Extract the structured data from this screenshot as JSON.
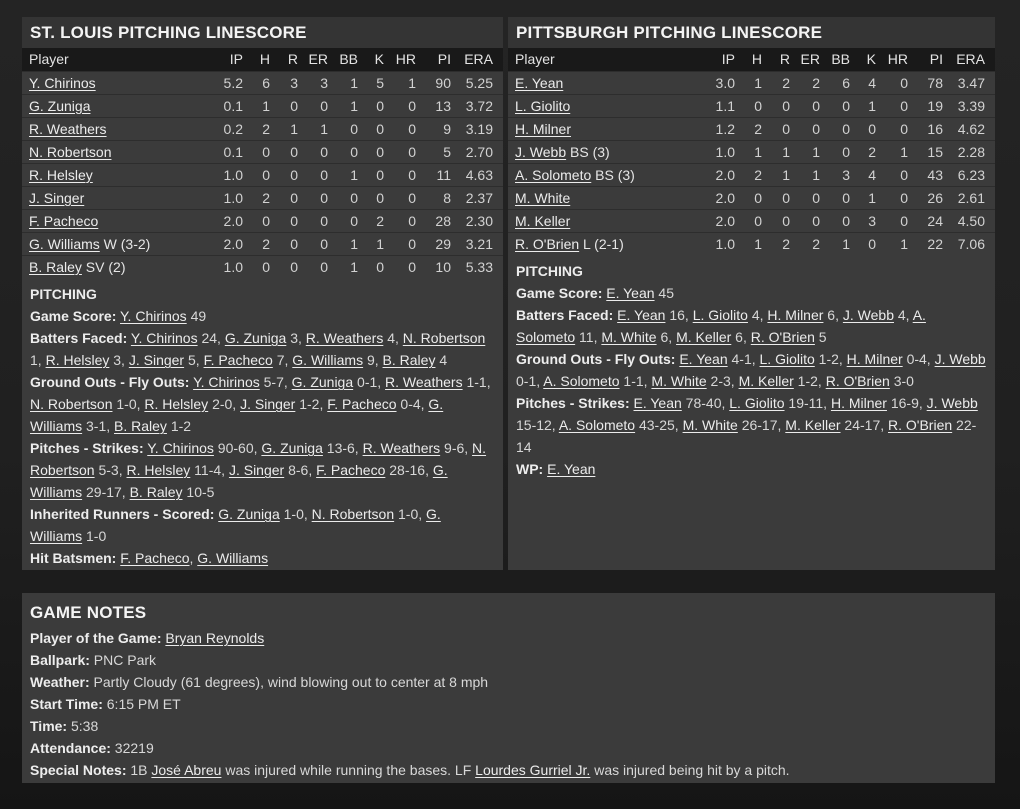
{
  "colors": {
    "page_bg": "#212121",
    "panel_bg": "#3b3b3b",
    "title_bar_bg": "#343434",
    "table_header_bg": "#191919",
    "text_primary": "#ececec",
    "text_secondary": "#d2d2d2"
  },
  "stl_panel": {
    "title": "ST. LOUIS PITCHING LINESCORE",
    "table": {
      "columns": [
        "Player",
        "IP",
        "H",
        "R",
        "ER",
        "BB",
        "K",
        "HR",
        "PI",
        "ERA"
      ],
      "rows": [
        {
          "player": "Y. Chirinos",
          "decision": "",
          "stats": [
            "5.2",
            "6",
            "3",
            "3",
            "1",
            "5",
            "1",
            "90",
            "5.25"
          ]
        },
        {
          "player": "G. Zuniga",
          "decision": "",
          "stats": [
            "0.1",
            "1",
            "0",
            "0",
            "1",
            "0",
            "0",
            "13",
            "3.72"
          ]
        },
        {
          "player": "R. Weathers",
          "decision": "",
          "stats": [
            "0.2",
            "2",
            "1",
            "1",
            "0",
            "0",
            "0",
            "9",
            "3.19"
          ]
        },
        {
          "player": "N. Robertson",
          "decision": "",
          "stats": [
            "0.1",
            "0",
            "0",
            "0",
            "0",
            "0",
            "0",
            "5",
            "2.70"
          ]
        },
        {
          "player": "R. Helsley",
          "decision": "",
          "stats": [
            "1.0",
            "0",
            "0",
            "0",
            "1",
            "0",
            "0",
            "11",
            "4.63"
          ]
        },
        {
          "player": "J. Singer",
          "decision": "",
          "stats": [
            "1.0",
            "2",
            "0",
            "0",
            "0",
            "0",
            "0",
            "8",
            "2.37"
          ]
        },
        {
          "player": "F. Pacheco",
          "decision": "",
          "stats": [
            "2.0",
            "0",
            "0",
            "0",
            "0",
            "2",
            "0",
            "28",
            "2.30"
          ]
        },
        {
          "player": "G. Williams",
          "decision": "W (3-2)",
          "stats": [
            "2.0",
            "2",
            "0",
            "0",
            "1",
            "1",
            "0",
            "29",
            "3.21"
          ]
        },
        {
          "player": "B. Raley",
          "decision": "SV (2)",
          "stats": [
            "1.0",
            "0",
            "0",
            "0",
            "1",
            "0",
            "0",
            "10",
            "5.33"
          ]
        }
      ]
    },
    "notes_heading": "PITCHING",
    "notes_lines": [
      [
        [
          "b",
          "Game Score:"
        ],
        [
          "t",
          " "
        ],
        [
          "l",
          "Y. Chirinos"
        ],
        [
          "t",
          " 49"
        ]
      ],
      [
        [
          "b",
          "Batters Faced:"
        ],
        [
          "t",
          " "
        ],
        [
          "l",
          "Y. Chirinos"
        ],
        [
          "t",
          " 24, "
        ],
        [
          "l",
          "G. Zuniga"
        ],
        [
          "t",
          " 3, "
        ],
        [
          "l",
          "R. Weathers"
        ],
        [
          "t",
          " 4, "
        ],
        [
          "l",
          "N. Robertson"
        ],
        [
          "t",
          " 1, "
        ],
        [
          "l",
          "R. Helsley"
        ],
        [
          "t",
          " 3, "
        ],
        [
          "l",
          "J. Singer"
        ],
        [
          "t",
          " 5, "
        ],
        [
          "l",
          "F. Pacheco"
        ],
        [
          "t",
          " 7, "
        ],
        [
          "l",
          "G. Williams"
        ],
        [
          "t",
          " 9, "
        ],
        [
          "l",
          "B. Raley"
        ],
        [
          "t",
          " 4"
        ]
      ],
      [
        [
          "b",
          "Ground Outs - Fly Outs:"
        ],
        [
          "t",
          " "
        ],
        [
          "l",
          "Y. Chirinos"
        ],
        [
          "t",
          " 5-7, "
        ],
        [
          "l",
          "G. Zuniga"
        ],
        [
          "t",
          " 0-1, "
        ],
        [
          "l",
          "R. Weathers"
        ],
        [
          "t",
          " 1-1, "
        ],
        [
          "l",
          "N. Robertson"
        ],
        [
          "t",
          " 1-0, "
        ],
        [
          "l",
          "R. Helsley"
        ],
        [
          "t",
          " 2-0, "
        ],
        [
          "l",
          "J. Singer"
        ],
        [
          "t",
          " 1-2, "
        ],
        [
          "l",
          "F. Pacheco"
        ],
        [
          "t",
          " 0-4, "
        ],
        [
          "l",
          "G. Williams"
        ],
        [
          "t",
          " 3-1, "
        ],
        [
          "l",
          "B. Raley"
        ],
        [
          "t",
          " 1-2"
        ]
      ],
      [
        [
          "b",
          "Pitches - Strikes:"
        ],
        [
          "t",
          " "
        ],
        [
          "l",
          "Y. Chirinos"
        ],
        [
          "t",
          " 90-60, "
        ],
        [
          "l",
          "G. Zuniga"
        ],
        [
          "t",
          " 13-6, "
        ],
        [
          "l",
          "R. Weathers"
        ],
        [
          "t",
          " 9-6, "
        ],
        [
          "l",
          "N. Robertson"
        ],
        [
          "t",
          " 5-3, "
        ],
        [
          "l",
          "R. Helsley"
        ],
        [
          "t",
          " 11-4, "
        ],
        [
          "l",
          "J. Singer"
        ],
        [
          "t",
          " 8-6, "
        ],
        [
          "l",
          "F. Pacheco"
        ],
        [
          "t",
          " 28-16, "
        ],
        [
          "l",
          "G. Williams"
        ],
        [
          "t",
          " 29-17, "
        ],
        [
          "l",
          "B. Raley"
        ],
        [
          "t",
          " 10-5"
        ]
      ],
      [
        [
          "b",
          "Inherited Runners - Scored:"
        ],
        [
          "t",
          " "
        ],
        [
          "l",
          "G. Zuniga"
        ],
        [
          "t",
          " 1-0, "
        ],
        [
          "l",
          "N. Robertson"
        ],
        [
          "t",
          " 1-0, "
        ],
        [
          "l",
          "G. Williams"
        ],
        [
          "t",
          " 1-0"
        ]
      ],
      [
        [
          "b",
          "Hit Batsmen:"
        ],
        [
          "t",
          " "
        ],
        [
          "l",
          "F. Pacheco"
        ],
        [
          "t",
          ", "
        ],
        [
          "l",
          "G. Williams"
        ]
      ]
    ]
  },
  "pit_panel": {
    "title": "PITTSBURGH PITCHING LINESCORE",
    "table": {
      "columns": [
        "Player",
        "IP",
        "H",
        "R",
        "ER",
        "BB",
        "K",
        "HR",
        "PI",
        "ERA"
      ],
      "rows": [
        {
          "player": "E. Yean",
          "decision": "",
          "stats": [
            "3.0",
            "1",
            "2",
            "2",
            "6",
            "4",
            "0",
            "78",
            "3.47"
          ]
        },
        {
          "player": "L. Giolito",
          "decision": "",
          "stats": [
            "1.1",
            "0",
            "0",
            "0",
            "0",
            "1",
            "0",
            "19",
            "3.39"
          ]
        },
        {
          "player": "H. Milner",
          "decision": "",
          "stats": [
            "1.2",
            "2",
            "0",
            "0",
            "0",
            "0",
            "0",
            "16",
            "4.62"
          ]
        },
        {
          "player": "J. Webb",
          "decision": "BS (3)",
          "stats": [
            "1.0",
            "1",
            "1",
            "1",
            "0",
            "2",
            "1",
            "15",
            "2.28"
          ]
        },
        {
          "player": "A. Solometo",
          "decision": "BS (3)",
          "stats": [
            "2.0",
            "2",
            "1",
            "1",
            "3",
            "4",
            "0",
            "43",
            "6.23"
          ]
        },
        {
          "player": "M. White",
          "decision": "",
          "stats": [
            "2.0",
            "0",
            "0",
            "0",
            "0",
            "1",
            "0",
            "26",
            "2.61"
          ]
        },
        {
          "player": "M. Keller",
          "decision": "",
          "stats": [
            "2.0",
            "0",
            "0",
            "0",
            "0",
            "3",
            "0",
            "24",
            "4.50"
          ]
        },
        {
          "player": "R. O'Brien",
          "decision": "L (2-1)",
          "stats": [
            "1.0",
            "1",
            "2",
            "2",
            "1",
            "0",
            "1",
            "22",
            "7.06"
          ]
        }
      ]
    },
    "notes_heading": "PITCHING",
    "notes_lines": [
      [
        [
          "b",
          "Game Score:"
        ],
        [
          "t",
          " "
        ],
        [
          "l",
          "E. Yean"
        ],
        [
          "t",
          " 45"
        ]
      ],
      [
        [
          "b",
          "Batters Faced:"
        ],
        [
          "t",
          " "
        ],
        [
          "l",
          "E. Yean"
        ],
        [
          "t",
          " 16, "
        ],
        [
          "l",
          "L. Giolito"
        ],
        [
          "t",
          " 4, "
        ],
        [
          "l",
          "H. Milner"
        ],
        [
          "t",
          " 6, "
        ],
        [
          "l",
          "J. Webb"
        ],
        [
          "t",
          " 4, "
        ],
        [
          "l",
          "A. Solometo"
        ],
        [
          "t",
          " 11, "
        ],
        [
          "l",
          "M. White"
        ],
        [
          "t",
          " 6, "
        ],
        [
          "l",
          "M. Keller"
        ],
        [
          "t",
          " 6, "
        ],
        [
          "l",
          "R. O'Brien"
        ],
        [
          "t",
          " 5"
        ]
      ],
      [
        [
          "b",
          "Ground Outs - Fly Outs:"
        ],
        [
          "t",
          " "
        ],
        [
          "l",
          "E. Yean"
        ],
        [
          "t",
          " 4-1, "
        ],
        [
          "l",
          "L. Giolito"
        ],
        [
          "t",
          " 1-2, "
        ],
        [
          "l",
          "H. Milner"
        ],
        [
          "t",
          " 0-4, "
        ],
        [
          "l",
          "J. Webb"
        ],
        [
          "t",
          " 0-1, "
        ],
        [
          "l",
          "A. Solometo"
        ],
        [
          "t",
          " 1-1, "
        ],
        [
          "l",
          "M. White"
        ],
        [
          "t",
          " 2-3, "
        ],
        [
          "l",
          "M. Keller"
        ],
        [
          "t",
          " 1-2, "
        ],
        [
          "l",
          "R. O'Brien"
        ],
        [
          "t",
          " 3-0"
        ]
      ],
      [
        [
          "b",
          "Pitches - Strikes:"
        ],
        [
          "t",
          " "
        ],
        [
          "l",
          "E. Yean"
        ],
        [
          "t",
          " 78-40, "
        ],
        [
          "l",
          "L. Giolito"
        ],
        [
          "t",
          " 19-11, "
        ],
        [
          "l",
          "H. Milner"
        ],
        [
          "t",
          " 16-9, "
        ],
        [
          "l",
          "J. Webb"
        ],
        [
          "t",
          " 15-12, "
        ],
        [
          "l",
          "A. Solometo"
        ],
        [
          "t",
          " 43-25, "
        ],
        [
          "l",
          "M. White"
        ],
        [
          "t",
          " 26-17, "
        ],
        [
          "l",
          "M. Keller"
        ],
        [
          "t",
          " 24-17, "
        ],
        [
          "l",
          "R. O'Brien"
        ],
        [
          "t",
          " 22-14"
        ]
      ],
      [
        [
          "b",
          "WP:"
        ],
        [
          "t",
          " "
        ],
        [
          "l",
          "E. Yean"
        ]
      ]
    ]
  },
  "game_notes": {
    "title": "GAME NOTES",
    "lines": [
      [
        [
          "b",
          "Player of the Game:"
        ],
        [
          "t",
          " "
        ],
        [
          "l",
          "Bryan Reynolds"
        ]
      ],
      [
        [
          "b",
          "Ballpark:"
        ],
        [
          "t",
          " PNC Park"
        ]
      ],
      [
        [
          "b",
          "Weather:"
        ],
        [
          "t",
          " Partly Cloudy (61 degrees), wind blowing out to center at 8 mph"
        ]
      ],
      [
        [
          "b",
          "Start Time:"
        ],
        [
          "t",
          " 6:15 PM ET"
        ]
      ],
      [
        [
          "b",
          "Time:"
        ],
        [
          "t",
          " 5:38"
        ]
      ],
      [
        [
          "b",
          "Attendance:"
        ],
        [
          "t",
          " 32219"
        ]
      ],
      [
        [
          "b",
          "Special Notes:"
        ],
        [
          "t",
          " 1B "
        ],
        [
          "l",
          "José Abreu"
        ],
        [
          "t",
          " was injured while running the bases. LF "
        ],
        [
          "l",
          "Lourdes Gurriel Jr."
        ],
        [
          "t",
          " was injured being hit by a pitch."
        ]
      ]
    ]
  }
}
